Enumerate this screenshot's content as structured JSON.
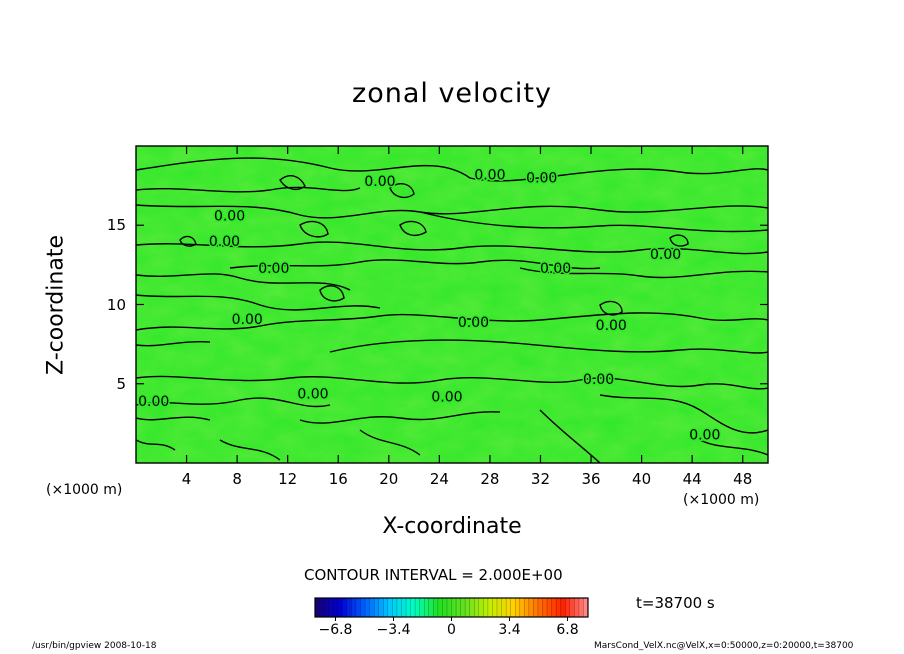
{
  "chart_data": {
    "type": "heatmap",
    "title": "zonal velocity",
    "xlabel": "X-coordinate",
    "ylabel": "Z-coordinate",
    "x_unit": "(×1000 m)",
    "y_unit": "(×1000 m)",
    "xlim": [
      0,
      50
    ],
    "ylim": [
      0,
      20
    ],
    "x_ticks": [
      4,
      8,
      12,
      16,
      20,
      24,
      28,
      32,
      36,
      40,
      44,
      48
    ],
    "y_ticks": [
      5,
      10,
      15
    ],
    "contour_interval_label": "CONTOUR INTERVAL = 2.000E+00",
    "contour_label": "0.00",
    "contour_labels": [
      {
        "x": 19.3,
        "z": 17.8,
        "text": "0.00"
      },
      {
        "x": 28.0,
        "z": 18.2,
        "text": "0.00"
      },
      {
        "x": 32.1,
        "z": 18.0,
        "text": "0.00"
      },
      {
        "x": 7.4,
        "z": 15.6,
        "text": "0.00"
      },
      {
        "x": 7.0,
        "z": 14.0,
        "text": "0.00"
      },
      {
        "x": 10.9,
        "z": 12.3,
        "text": "0.00"
      },
      {
        "x": 33.2,
        "z": 12.3,
        "text": "0.00"
      },
      {
        "x": 41.9,
        "z": 13.2,
        "text": "0.00"
      },
      {
        "x": 8.8,
        "z": 9.1,
        "text": "0.00"
      },
      {
        "x": 26.7,
        "z": 8.9,
        "text": "0.00"
      },
      {
        "x": 37.6,
        "z": 8.7,
        "text": "0.00"
      },
      {
        "x": 14.0,
        "z": 4.4,
        "text": "0.00"
      },
      {
        "x": 24.6,
        "z": 4.2,
        "text": "0.00"
      },
      {
        "x": 36.6,
        "z": 5.3,
        "text": "0.00"
      },
      {
        "x": 1.4,
        "z": 3.9,
        "text": "0.00"
      },
      {
        "x": 45.0,
        "z": 1.8,
        "text": "0.00"
      }
    ],
    "colorbar": {
      "min": -8.0,
      "max": 8.0,
      "ticks": [
        -6.8,
        -3.4,
        0,
        3.4,
        6.8
      ],
      "tick_labels": [
        "−6.8",
        "−3.4",
        "0",
        "3.4",
        "6.8"
      ],
      "colors": [
        "#1a0070",
        "#0000d0",
        "#0060ff",
        "#00c8ff",
        "#00ffc0",
        "#20e020",
        "#60e020",
        "#c0f000",
        "#ffd000",
        "#ff7000",
        "#ff2000",
        "#ff9090"
      ]
    },
    "field_color": "#2fe828",
    "time_label": "t=38700 s"
  },
  "footer": {
    "left": "/usr/bin/gpview  2008-10-18",
    "right": "MarsCond_VelX.nc@VelX,x=0:50000,z=0:20000,t=38700"
  }
}
